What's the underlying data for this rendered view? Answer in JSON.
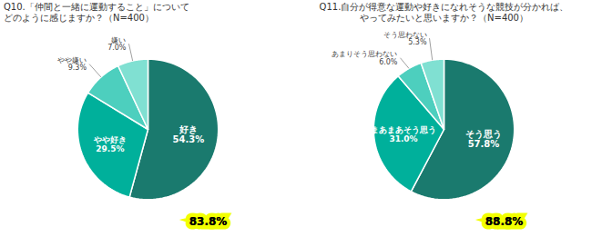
{
  "chart_data": [
    {
      "type": "pie",
      "title": "Q10.「仲間と一緒に運動すること」について\nどのように感じますか？（N=400）",
      "categories": [
        "好き",
        "やや好き",
        "やや嫌い",
        "嫌い"
      ],
      "values": [
        54.3,
        29.5,
        9.3,
        7.0
      ],
      "value_labels": [
        "54.3%",
        "29.5%",
        "9.3%",
        "7.0%"
      ],
      "colors": [
        "#1a7a6e",
        "#00b09b",
        "#4dcfbe",
        "#80e0d2"
      ],
      "data_labels": true,
      "annotations": [
        {
          "value": 83.8,
          "label": "83.8%",
          "color": "#f2ff00"
        }
      ]
    },
    {
      "type": "pie",
      "title": "Q11.自分が得意な運動や好きになれそうな競技が分かれば、\nやってみたいと思いますか？（N=400）",
      "categories": [
        "そう思う",
        "まあまあそう思う",
        "あまりそう思わない",
        "そう思わない"
      ],
      "values": [
        57.8,
        31.0,
        6.0,
        5.3
      ],
      "value_labels": [
        "57.8%",
        "31.0%",
        "6.0%",
        "5.3%"
      ],
      "colors": [
        "#1a7a6e",
        "#00b09b",
        "#4dcfbe",
        "#80e0d2"
      ],
      "data_labels": true,
      "annotations": [
        {
          "value": 88.8,
          "label": "88.8%",
          "color": "#f2ff00"
        }
      ]
    }
  ]
}
